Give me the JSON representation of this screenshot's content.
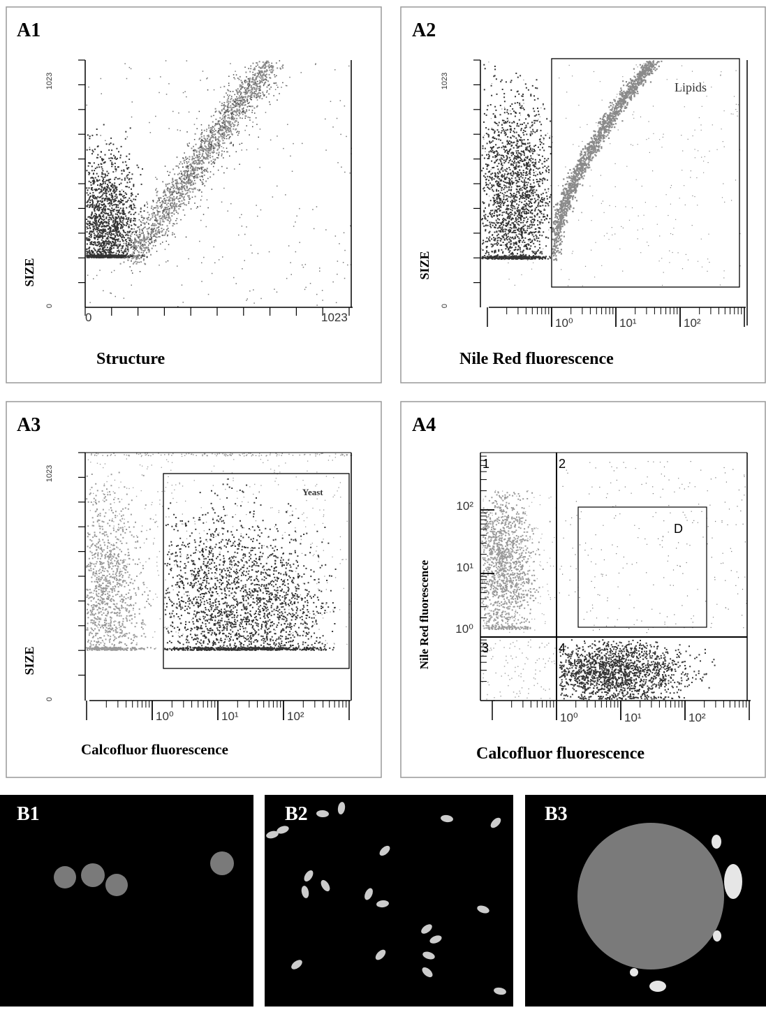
{
  "panels": [
    {
      "label": "A1",
      "x_axis_label": "Structure",
      "y_axis_label": "SIZE",
      "y_tick_labels": [
        "0",
        "1023"
      ],
      "x_tick_labels": [
        "0",
        "1023"
      ]
    },
    {
      "label": "A2",
      "x_axis_label": "Nile Red fluorescence",
      "y_axis_label": "SIZE",
      "y_tick_labels": [
        "0",
        "1023"
      ],
      "x_tick_labels": [
        "10⁰",
        "10¹",
        "10²"
      ],
      "gate_label": "Lipids"
    },
    {
      "label": "A3",
      "x_axis_label": "Calcofluor fluorescence",
      "y_axis_label": "SIZE",
      "y_tick_labels": [
        "0",
        "1023"
      ],
      "x_tick_labels": [
        "10⁰",
        "10¹",
        "10²"
      ],
      "gate_label": "Yeast"
    },
    {
      "label": "A4",
      "x_axis_label": "Calcofluor fluorescence",
      "y_axis_label": "Nile Red fluorescence",
      "y_tick_labels": [
        "10²",
        "10¹",
        "10⁰"
      ],
      "x_tick_labels": [
        "10⁰",
        "10¹",
        "10²"
      ],
      "quadrant_labels": [
        "1",
        "2",
        "3",
        "4"
      ],
      "gate_label": "D"
    }
  ],
  "images": [
    {
      "label": "B1"
    },
    {
      "label": "B2"
    },
    {
      "label": "B3"
    }
  ]
}
